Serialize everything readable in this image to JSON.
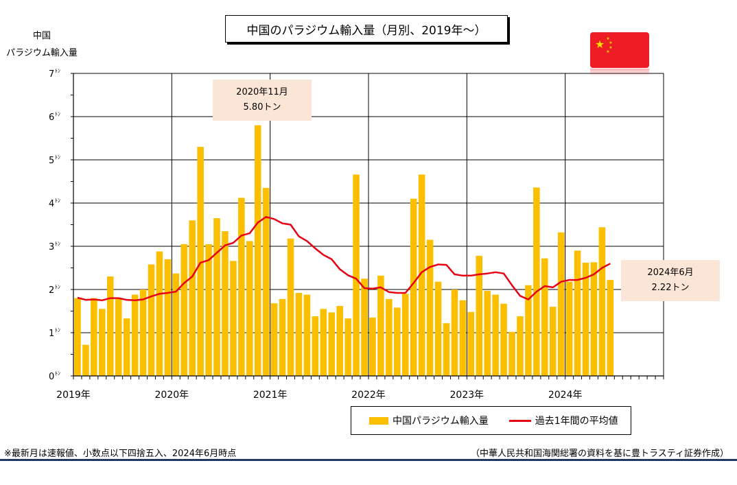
{
  "title": "中国のパラジウム輸入量（月別、2019年～）",
  "y_axis_label_line1": "中国",
  "y_axis_label_line2": "パラジウム輸入量",
  "callouts": [
    {
      "line1": "2020年11月",
      "line2": "5.80トン"
    },
    {
      "line1": "2024年6月",
      "line2": "2.22トン"
    }
  ],
  "legend": {
    "bar": "中国パラジウム輸入量",
    "line": "過去1年間の平均値"
  },
  "note_left": "※最新月は速報値、小数点以下四捨五入、2024年6月時点",
  "note_right": "（中華人民共和国海関総署の資料を基に豊トラスティ証券作成）",
  "colors": {
    "bar": "#fbbf00",
    "line": "#e60012",
    "callout_bg": "#fbe5d6",
    "rule": "#1f3864"
  },
  "flag": "china-flag-icon",
  "chart_data": {
    "type": "bar",
    "x_labels": [
      "2019年",
      "2020年",
      "2021年",
      "2022年",
      "2023年",
      "2024年"
    ],
    "y_ticks": [
      0,
      1,
      2,
      3,
      4,
      5,
      6,
      7
    ],
    "y_unit": "ﾄﾝ",
    "ylim": [
      0,
      7
    ],
    "months_on_axis": 72,
    "grid": true,
    "legend_position": "bottom-center",
    "series": [
      {
        "name": "中国パラジウム輸入量",
        "type": "bar",
        "start": "2019-01",
        "values": [
          1.8,
          0.72,
          1.8,
          1.55,
          2.3,
          1.78,
          1.33,
          1.88,
          2.0,
          2.58,
          2.88,
          2.7,
          2.37,
          3.05,
          3.6,
          5.3,
          3.05,
          3.65,
          3.35,
          2.66,
          4.12,
          3.12,
          5.8,
          4.35,
          1.68,
          1.78,
          3.18,
          1.92,
          1.88,
          1.38,
          1.55,
          1.47,
          1.62,
          1.33,
          4.66,
          2.25,
          1.35,
          2.32,
          1.78,
          1.58,
          1.9,
          4.1,
          4.66,
          3.15,
          2.18,
          1.22,
          2.0,
          1.75,
          1.48,
          2.78,
          1.97,
          1.88,
          1.67,
          1.02,
          1.38,
          2.1,
          4.36,
          2.72,
          1.6,
          3.32,
          2.18,
          2.9,
          2.62,
          2.63,
          3.44,
          2.22
        ]
      },
      {
        "name": "過去1年間の平均値",
        "type": "line",
        "start": "2019-01",
        "values": [
          1.81,
          1.76,
          1.77,
          1.75,
          1.8,
          1.8,
          1.76,
          1.75,
          1.77,
          1.84,
          1.9,
          1.92,
          1.95,
          2.15,
          2.3,
          2.62,
          2.68,
          2.85,
          3.02,
          3.08,
          3.25,
          3.3,
          3.55,
          3.68,
          3.63,
          3.53,
          3.5,
          3.23,
          3.12,
          2.95,
          2.8,
          2.7,
          2.47,
          2.33,
          2.25,
          2.03,
          2.02,
          2.05,
          1.94,
          1.92,
          1.92,
          2.15,
          2.4,
          2.52,
          2.58,
          2.57,
          2.35,
          2.32,
          2.32,
          2.35,
          2.37,
          2.4,
          2.37,
          2.1,
          1.85,
          1.77,
          1.95,
          2.08,
          2.05,
          2.18,
          2.22,
          2.22,
          2.27,
          2.35,
          2.5,
          2.6
        ]
      }
    ]
  }
}
